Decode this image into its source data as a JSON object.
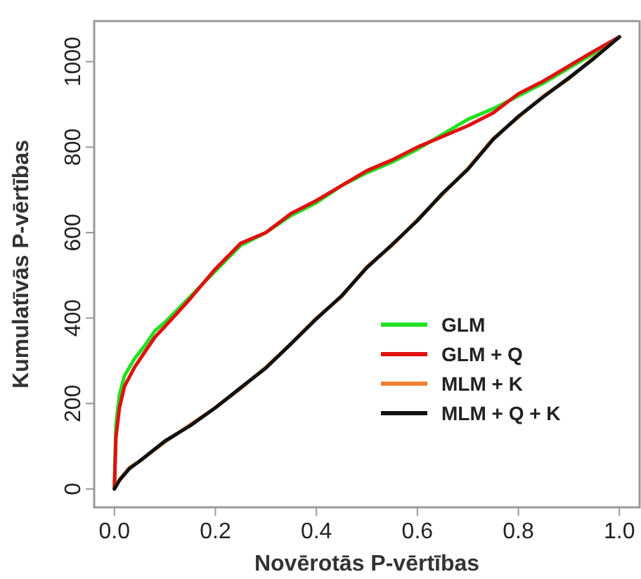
{
  "chart_data": {
    "type": "line",
    "xlabel": "Novērotās P-vērtības",
    "ylabel": "Kumulatīvās P-vērtības",
    "xlim": [
      -0.04,
      1.04
    ],
    "ylim": [
      -43,
      1095
    ],
    "xticks": [
      {
        "value": 0,
        "label": "0.0"
      },
      {
        "value": 0.2,
        "label": "0.2"
      },
      {
        "value": 0.4,
        "label": "0.4"
      },
      {
        "value": 0.6,
        "label": "0.6"
      },
      {
        "value": 0.8,
        "label": "0.8"
      },
      {
        "value": 1,
        "label": "1.0"
      }
    ],
    "yticks": [
      0,
      200,
      400,
      600,
      800,
      1000
    ],
    "grid": false,
    "legend": "bottom right",
    "line_style": "solid",
    "series": [
      {
        "name": "GLM",
        "color": "#22e022",
        "x": [
          0,
          0.003,
          0.01,
          0.02,
          0.04,
          0.06,
          0.08,
          0.1,
          0.15,
          0.2,
          0.25,
          0.3,
          0.35,
          0.4,
          0.45,
          0.5,
          0.55,
          0.6,
          0.65,
          0.7,
          0.75,
          0.8,
          0.85,
          0.9,
          0.95,
          1
        ],
        "values": [
          0,
          150,
          220,
          265,
          305,
          335,
          370,
          390,
          450,
          510,
          570,
          600,
          640,
          670,
          710,
          740,
          765,
          795,
          830,
          865,
          890,
          920,
          950,
          985,
          1020,
          1058
        ]
      },
      {
        "name": "GLM + Q",
        "color": "#e01010",
        "x": [
          0,
          0.003,
          0.01,
          0.02,
          0.04,
          0.06,
          0.08,
          0.1,
          0.15,
          0.2,
          0.25,
          0.3,
          0.35,
          0.4,
          0.45,
          0.5,
          0.55,
          0.6,
          0.65,
          0.7,
          0.75,
          0.8,
          0.85,
          0.9,
          0.95,
          1
        ],
        "values": [
          0,
          120,
          190,
          240,
          285,
          320,
          355,
          380,
          445,
          515,
          575,
          600,
          645,
          675,
          710,
          745,
          770,
          800,
          825,
          850,
          880,
          925,
          955,
          990,
          1025,
          1058
        ]
      },
      {
        "name": "MLM + K",
        "color": "#f08030",
        "x": [
          0,
          0.01,
          0.03,
          0.05,
          0.1,
          0.15,
          0.2,
          0.25,
          0.3,
          0.35,
          0.4,
          0.45,
          0.5,
          0.55,
          0.6,
          0.65,
          0.7,
          0.75,
          0.8,
          0.85,
          0.9,
          0.95,
          1
        ],
        "values": [
          0,
          22,
          50,
          65,
          110,
          150,
          190,
          235,
          285,
          340,
          400,
          450,
          520,
          570,
          630,
          690,
          750,
          820,
          870,
          920,
          960,
          1010,
          1058
        ]
      },
      {
        "name": "MLM + Q + K",
        "color": "#111111",
        "x": [
          0,
          0.01,
          0.03,
          0.05,
          0.1,
          0.15,
          0.2,
          0.25,
          0.3,
          0.35,
          0.4,
          0.45,
          0.5,
          0.55,
          0.6,
          0.65,
          0.7,
          0.75,
          0.8,
          0.85,
          0.9,
          0.95,
          1
        ],
        "values": [
          0,
          20,
          48,
          65,
          112,
          148,
          190,
          237,
          283,
          340,
          398,
          452,
          518,
          572,
          628,
          692,
          748,
          818,
          872,
          918,
          962,
          1008,
          1058
        ]
      }
    ]
  }
}
